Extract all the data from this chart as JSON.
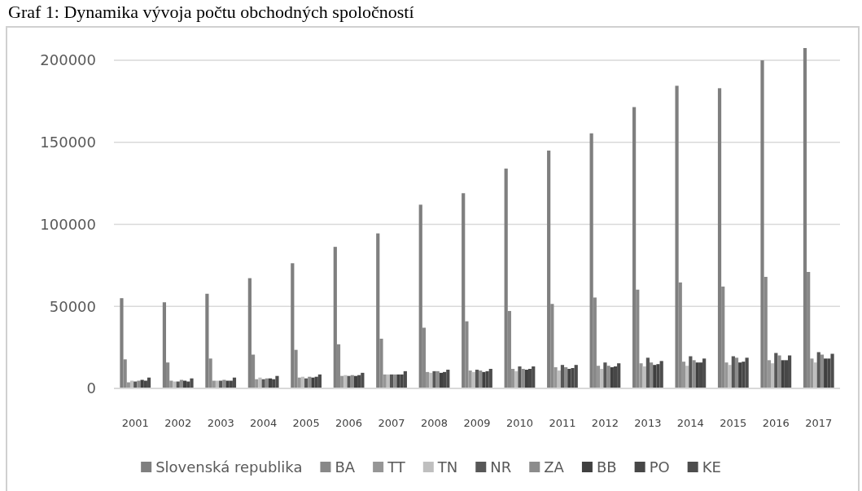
{
  "chart_data": {
    "type": "bar",
    "title": "Graf 1: Dynamika vývoja počtu obchodných spoločností",
    "categories": [
      "2001",
      "2002",
      "2003",
      "2004",
      "2005",
      "2006",
      "2007",
      "2008",
      "2009",
      "2010",
      "2011",
      "2012",
      "2013",
      "2014",
      "2015",
      "2016",
      "2017"
    ],
    "series": [
      {
        "name": "Slovenská republika",
        "color": "#7f7f7f",
        "values": [
          55000,
          52500,
          57700,
          67200,
          76300,
          86300,
          94500,
          112000,
          119000,
          134000,
          145000,
          155500,
          171500,
          184500,
          183000,
          200000,
          207500
        ]
      },
      {
        "name": "BA",
        "color": "#888888",
        "values": [
          17700,
          15800,
          18200,
          20600,
          23500,
          26900,
          30300,
          37000,
          40900,
          47200,
          51500,
          55400,
          60200,
          64600,
          62100,
          68000,
          71000
        ]
      },
      {
        "name": "TT",
        "color": "#969696",
        "values": [
          3700,
          4700,
          4700,
          5600,
          6600,
          7600,
          8500,
          10000,
          10900,
          11900,
          12900,
          13800,
          15300,
          16300,
          15800,
          17200,
          18200
        ]
      },
      {
        "name": "TN",
        "color": "#bfbfbf",
        "values": [
          4700,
          4200,
          4700,
          6600,
          7100,
          8100,
          8500,
          9500,
          10000,
          10500,
          10900,
          11900,
          13400,
          13800,
          14300,
          15300,
          15800
        ]
      },
      {
        "name": "NR",
        "color": "#575757",
        "values": [
          4200,
          4200,
          4700,
          5600,
          6100,
          7600,
          8500,
          10500,
          11400,
          13400,
          14300,
          15800,
          18700,
          19600,
          19600,
          21600,
          22100
        ]
      },
      {
        "name": "ZA",
        "color": "#8c8c8c",
        "values": [
          4700,
          5200,
          5200,
          6100,
          7100,
          8100,
          8500,
          10500,
          10900,
          11900,
          12900,
          13800,
          15800,
          17200,
          18700,
          20100,
          20600
        ]
      },
      {
        "name": "BB",
        "color": "#404040",
        "values": [
          5200,
          4700,
          4700,
          6100,
          6600,
          7600,
          8500,
          9500,
          10000,
          11400,
          11900,
          12900,
          14300,
          15800,
          15800,
          17200,
          18200
        ]
      },
      {
        "name": "PO",
        "color": "#474747",
        "values": [
          4700,
          4200,
          4700,
          5600,
          7100,
          8100,
          8500,
          10000,
          10500,
          11900,
          12400,
          13400,
          14800,
          15800,
          16300,
          17200,
          18200
        ]
      },
      {
        "name": "KE",
        "color": "#4d4d4d",
        "values": [
          6600,
          6100,
          6600,
          7600,
          8500,
          9500,
          10500,
          11400,
          11900,
          13400,
          14300,
          15300,
          16700,
          18200,
          18700,
          20100,
          21100
        ]
      }
    ],
    "ylim": [
      0,
      207500
    ],
    "yticks": [
      0,
      50000,
      100000,
      150000,
      200000
    ],
    "grid": "y",
    "legend": "bottom"
  }
}
